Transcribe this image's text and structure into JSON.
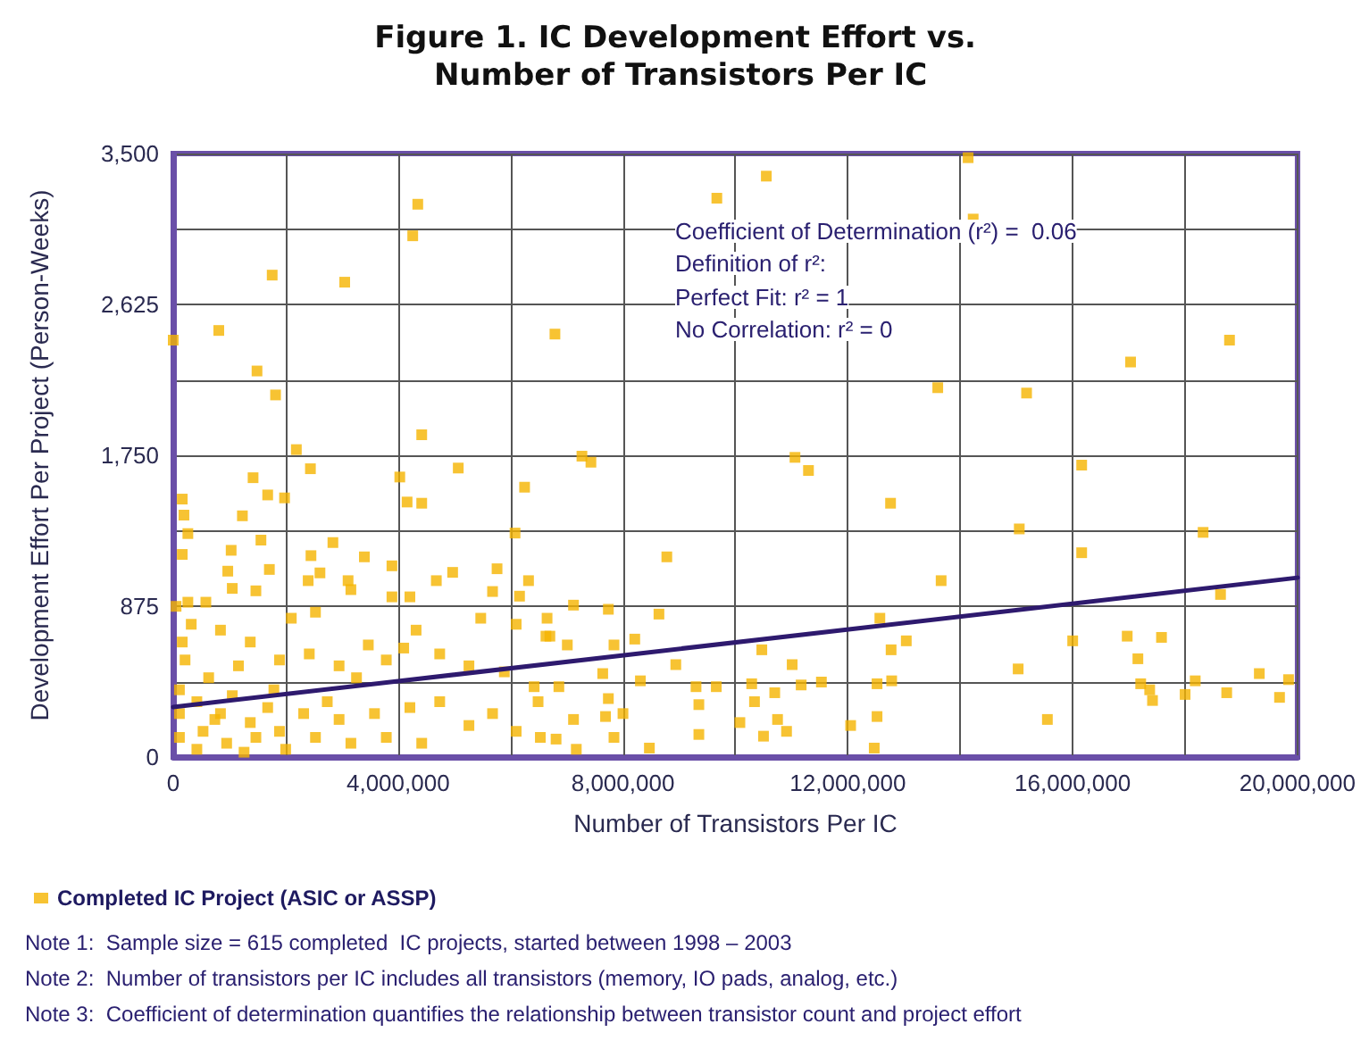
{
  "chart_data": {
    "type": "scatter",
    "title": "Figure 1. IC Development Effort vs. Number of Transistors Per IC",
    "xlabel": "Number of Transistors Per IC",
    "ylabel": "Development Effort Per Project (Person-Weeks)",
    "xlim": [
      0,
      20000000
    ],
    "ylim": [
      0,
      3500
    ],
    "xticks": [
      {
        "value": 0,
        "label": "0"
      },
      {
        "value": 2000000,
        "label": null
      },
      {
        "value": 4000000,
        "label": "4,000,000"
      },
      {
        "value": 6000000,
        "label": null
      },
      {
        "value": 8000000,
        "label": "8,000,000"
      },
      {
        "value": 10000000,
        "label": null
      },
      {
        "value": 12000000,
        "label": "12,000,000"
      },
      {
        "value": 14000000,
        "label": null
      },
      {
        "value": 16000000,
        "label": "16,000,000"
      },
      {
        "value": 18000000,
        "label": null
      },
      {
        "value": 20000000,
        "label": "20,000,000"
      }
    ],
    "yticks": [
      {
        "value": 0,
        "label": "0"
      },
      {
        "value": 437.5,
        "label": null
      },
      {
        "value": 875,
        "label": "875"
      },
      {
        "value": 1312.5,
        "label": null
      },
      {
        "value": 1750,
        "label": "1,750"
      },
      {
        "value": 2187.5,
        "label": null
      },
      {
        "value": 2625,
        "label": "2,625"
      },
      {
        "value": 3062.5,
        "label": null
      },
      {
        "value": 3500,
        "label": "3,500"
      }
    ],
    "grid": true,
    "legend": "bottom left",
    "series": [
      {
        "name": "Completed IC Project (ASIC or ASSP)",
        "color": "#f5b400",
        "marker": "square",
        "x": [
          4350000,
          4260000,
          1760000,
          3050000,
          0,
          810000,
          6790000,
          1490000,
          1820000,
          4420000,
          2190000,
          2440000,
          1420000,
          4030000,
          5070000,
          1680000,
          1980000,
          160000,
          190000,
          1230000,
          4160000,
          4420000,
          6250000,
          260000,
          6080000,
          1560000,
          160000,
          1030000,
          2840000,
          2450000,
          3400000,
          970000,
          1710000,
          2400000,
          2610000,
          3110000,
          3890000,
          4680000,
          4970000,
          5760000,
          6320000,
          1050000,
          1470000,
          3160000,
          3890000,
          4210000,
          5680000,
          6160000,
          260000,
          580000,
          320000,
          840000,
          1370000,
          2100000,
          2530000,
          3470000,
          4320000,
          5470000,
          6100000,
          6630000,
          4740000,
          5260000,
          5890000,
          6420000,
          210000,
          630000,
          1160000,
          1890000,
          2420000,
          2950000,
          3790000,
          4100000,
          420000,
          1050000,
          1680000,
          2320000,
          2950000,
          3580000,
          4210000,
          4740000,
          5260000,
          5680000,
          6100000,
          6530000,
          110000,
          530000,
          950000,
          1470000,
          2000000,
          2530000,
          3160000,
          3790000,
          4420000,
          110000,
          740000,
          1370000,
          110000,
          160000,
          50000,
          840000,
          1890000,
          2740000,
          3260000,
          1790000,
          420000,
          1260000,
          10550000,
          9670000,
          7270000,
          7430000,
          11060000,
          11300000,
          12760000,
          8780000,
          7120000,
          7740000,
          6650000,
          8640000,
          6700000,
          7010000,
          7840000,
          8210000,
          8940000,
          10470000,
          11010000,
          12570000,
          12770000,
          13040000,
          7640000,
          8310000,
          9300000,
          9660000,
          10290000,
          10700000,
          11170000,
          11530000,
          12520000,
          12780000,
          6490000,
          6860000,
          7740000,
          7120000,
          7690000,
          8000000,
          9350000,
          10340000,
          10750000,
          10080000,
          9350000,
          10500000,
          12050000,
          12520000,
          10910000,
          8470000,
          7840000,
          7170000,
          6810000,
          12470000,
          14140000,
          14230000,
          18790000,
          17030000,
          13600000,
          15180000,
          16160000,
          15050000,
          18320000,
          16160000,
          13660000,
          18630000,
          16000000,
          16970000,
          17580000,
          17160000,
          15030000,
          17210000,
          17370000,
          17420000,
          18000000,
          18180000,
          18740000,
          19320000,
          19680000,
          19840000,
          15550000
        ],
        "values": [
          3206,
          3023,
          2795,
          2754,
          2418,
          2474,
          2453,
          2239,
          2100,
          1869,
          1783,
          1672,
          1620,
          1624,
          1676,
          1520,
          1503,
          1496,
          1403,
          1399,
          1479,
          1472,
          1565,
          1296,
          1299,
          1258,
          1175,
          1199,
          1244,
          1168,
          1161,
          1078,
          1088,
          1023,
          1068,
          1023,
          1109,
          1023,
          1071,
          1092,
          1023,
          978,
          964,
          971,
          929,
          929,
          960,
          933,
          898,
          898,
          770,
          736,
          667,
          805,
          840,
          650,
          736,
          805,
          770,
          701,
          598,
          529,
          494,
          408,
          563,
          460,
          529,
          563,
          598,
          529,
          563,
          632,
          321,
          356,
          287,
          252,
          218,
          252,
          287,
          321,
          183,
          252,
          149,
          114,
          114,
          149,
          80,
          114,
          45,
          114,
          80,
          114,
          80,
          252,
          218,
          200,
          390,
          667,
          874,
          252,
          149,
          321,
          460,
          390,
          45,
          28,
          3369,
          3241,
          1745,
          1710,
          1738,
          1662,
          1472,
          1161,
          881,
          857,
          805,
          829,
          701,
          650,
          650,
          684,
          536,
          622,
          536,
          805,
          622,
          674,
          484,
          442,
          408,
          408,
          425,
          373,
          418,
          435,
          425,
          442,
          321,
          408,
          339,
          218,
          235,
          252,
          304,
          321,
          218,
          200,
          131,
          121,
          183,
          235,
          149,
          52,
          114,
          45,
          104,
          52,
          3476,
          3120,
          2418,
          2291,
          2142,
          2111,
          1693,
          1323,
          1303,
          1185,
          1023,
          943,
          674,
          701,
          694,
          570,
          511,
          425,
          390,
          328,
          363,
          442,
          373,
          484,
          346,
          449,
          218
        ]
      },
      {
        "type": "line",
        "color": "#2e1a6e",
        "marker": "none",
        "line_style": "solid",
        "x": [
          0,
          20000000
        ],
        "values": [
          290,
          1040
        ]
      }
    ],
    "annotations": [
      "Coefficient of Determination (r²) =  0.06",
      "Definition of r²:",
      "Perfect Fit: r² = 1",
      "No Correlation: r² = 0",
      "Note 1:  Sample size = 615 completed  IC projects, started between 1998 – 2003",
      "Note 2:  Number of transistors per IC includes all transistors (memory, IO pads, analog, etc.)",
      "Note 3:  Coefficient of determination quantifies the relationship between transistor count and project effort"
    ]
  }
}
